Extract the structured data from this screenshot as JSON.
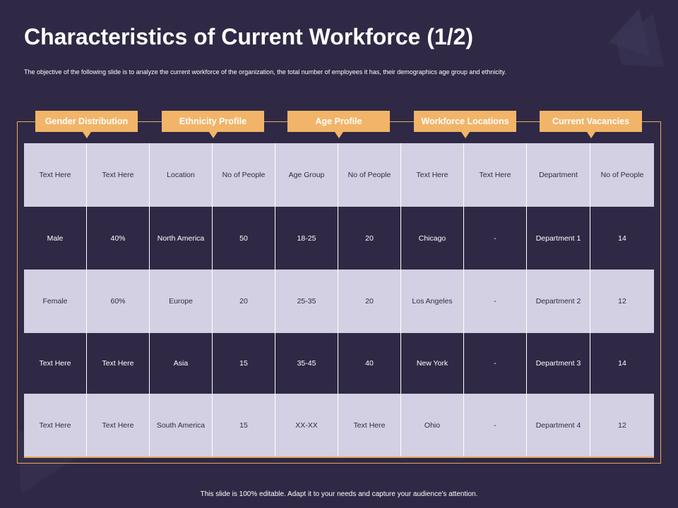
{
  "title": "Characteristics of Current Workforce (1/2)",
  "subtitle": "The objective of the following slide is to analyze the current workforce of the organization, the total number of employees it has, their demographics age group and ethnicity.",
  "footer": "This slide is 100% editable.  Adapt it to your needs and capture your audience's attention.",
  "colors": {
    "background": "#2f2945",
    "accent": "#f2b468",
    "row_light": "#d4d0e3"
  },
  "headers": [
    "Gender Distribution",
    "Ethnicity Profile",
    "Age Profile",
    "Workforce Locations",
    "Current Vacancies"
  ],
  "table": {
    "rows": [
      [
        "Text Here",
        "Text Here",
        "Location",
        "No of People",
        "Age Group",
        "No of People",
        "Text Here",
        "Text Here",
        "Department",
        "No of People"
      ],
      [
        "Male",
        "40%",
        "North America",
        "50",
        "18-25",
        "20",
        "Chicago",
        "-",
        "Department 1",
        "14"
      ],
      [
        "Female",
        "60%",
        "Europe",
        "20",
        "25-35",
        "20",
        "Los Angeles",
        "-",
        "Department 2",
        "12"
      ],
      [
        "Text Here",
        "Text Here",
        "Asia",
        "15",
        "35-45",
        "40",
        "New York",
        "-",
        "Department 3",
        "14"
      ],
      [
        "Text Here",
        "Text Here",
        "South America",
        "15",
        "XX-XX",
        "Text Here",
        "Ohio",
        "-",
        "Department 4",
        "12"
      ]
    ]
  }
}
